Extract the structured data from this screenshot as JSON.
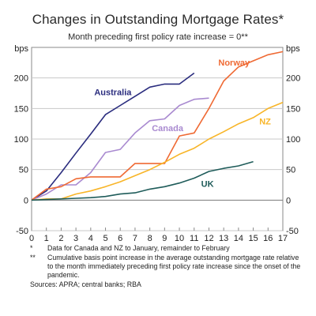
{
  "title": "Changes in Outstanding Mortgage Rates*",
  "subtitle": "Month preceding first policy rate increase = 0**",
  "notes": [
    {
      "mark": "*",
      "text": "Data for Canada and NZ to January, remainder to February"
    },
    {
      "mark": "**",
      "text": "Cumulative basis point increase in the average outstanding mortgage rate relative to the month immediately preceding first policy rate increase since the onset of the pandemic."
    }
  ],
  "sources": "Sources: APRA; central banks; RBA",
  "chart_data": {
    "type": "line",
    "title": "Changes in Outstanding Mortgage Rates*",
    "subtitle": "Month preceding first policy rate increase = 0**",
    "unit_left": "bps",
    "unit_right": "bps",
    "xlim": [
      0,
      17
    ],
    "ylim": [
      -50,
      250
    ],
    "x_ticks": [
      0,
      1,
      2,
      3,
      4,
      5,
      6,
      7,
      8,
      9,
      10,
      11,
      12,
      13,
      14,
      15,
      16,
      17
    ],
    "y_ticks": [
      -50,
      0,
      50,
      100,
      150,
      200
    ],
    "grid": true,
    "legend": "inline labels",
    "series": [
      {
        "name": "Australia",
        "color": "#2a2c7e",
        "x": [
          0,
          1,
          2,
          3,
          4,
          5,
          6,
          7,
          8,
          9,
          10,
          11
        ],
        "y": [
          0,
          15,
          45,
          77,
          108,
          140,
          155,
          170,
          185,
          190,
          190,
          208
        ]
      },
      {
        "name": "Canada",
        "color": "#a98ad0",
        "x": [
          0,
          1,
          2,
          3,
          4,
          5,
          6,
          7,
          8,
          9,
          10,
          11,
          12
        ],
        "y": [
          0,
          10,
          25,
          25,
          45,
          78,
          83,
          110,
          130,
          133,
          155,
          165,
          167
        ]
      },
      {
        "name": "Norway",
        "color": "#ef6a34",
        "x": [
          0,
          1,
          2,
          3,
          4,
          5,
          6,
          7,
          8,
          9,
          10,
          11,
          12,
          13,
          14,
          15,
          16,
          17
        ],
        "y": [
          0,
          18,
          22,
          35,
          38,
          38,
          38,
          60,
          60,
          60,
          105,
          110,
          150,
          195,
          218,
          228,
          238,
          243
        ]
      },
      {
        "name": "NZ",
        "color": "#f8b528",
        "x": [
          0,
          1,
          2,
          3,
          4,
          5,
          6,
          7,
          8,
          9,
          10,
          11,
          12,
          13,
          14,
          15,
          16,
          17
        ],
        "y": [
          0,
          2,
          2,
          10,
          15,
          22,
          30,
          40,
          50,
          62,
          75,
          85,
          100,
          112,
          125,
          135,
          150,
          160
        ]
      },
      {
        "name": "UK",
        "color": "#1f5c5a",
        "x": [
          0,
          1,
          2,
          3,
          4,
          5,
          6,
          7,
          8,
          9,
          10,
          11,
          12,
          13,
          14,
          15
        ],
        "y": [
          0,
          1,
          2,
          3,
          4,
          6,
          10,
          12,
          18,
          22,
          28,
          36,
          47,
          52,
          56,
          63
        ]
      }
    ]
  }
}
